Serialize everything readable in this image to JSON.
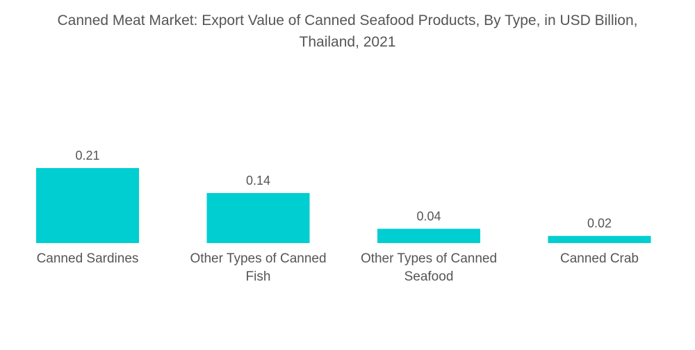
{
  "title_lines": [
    "Canned Meat Market: Export Value of Canned Seafood Products, By Type, in USD Billion,",
    "Thailand, 2021"
  ],
  "chart_data": {
    "type": "bar",
    "title": "Canned Meat Market: Export Value of Canned Seafood Products, By Type, in USD Billion, Thailand, 2021",
    "categories": [
      "Canned Sardines",
      "Other Types of Canned Fish",
      "Other Types of Canned Seafood",
      "Canned Crab"
    ],
    "category_label_lines": [
      [
        "Canned Sardines"
      ],
      [
        "Other Types of Canned",
        "Fish"
      ],
      [
        "Other Types of Canned",
        "Seafood"
      ],
      [
        "Canned Crab"
      ]
    ],
    "values": [
      0.21,
      0.14,
      0.04,
      0.02
    ],
    "data_labels": [
      "0.21",
      "0.14",
      "0.04",
      "0.02"
    ],
    "bar_color": "#00CED1",
    "ylim": [
      0,
      0.21
    ],
    "xlabel": "",
    "ylabel": "",
    "grid": false,
    "legend": "none"
  }
}
